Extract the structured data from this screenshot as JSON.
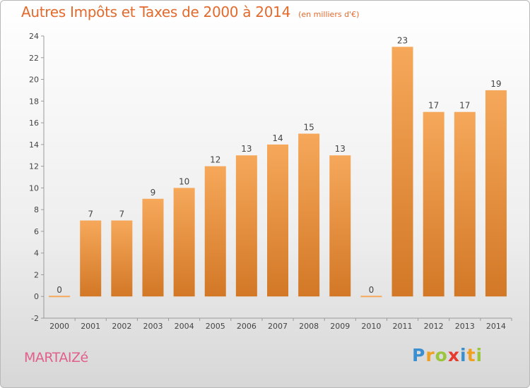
{
  "header": {
    "title": "Autres Impôts et Taxes de 2000 à 2014",
    "subtitle": "(en milliers d'€)"
  },
  "footer": {
    "commune": "MARTAIZé",
    "logo_letters": [
      "P",
      "r",
      "o",
      "x",
      "i",
      "t",
      "i"
    ],
    "logo_colors": [
      "#3a8fd0",
      "#f0a020",
      "#9bc53d",
      "#e8392f",
      "#3a8fd0",
      "#f0a020",
      "#9bc53d"
    ]
  },
  "colors": {
    "bar_light": "#f6a85a",
    "bar_dark": "#d27826",
    "title": "#e26a2c",
    "commune": "#e0608a"
  },
  "chart_data": {
    "type": "bar",
    "categories": [
      "2000",
      "2001",
      "2002",
      "2003",
      "2004",
      "2005",
      "2006",
      "2007",
      "2008",
      "2009",
      "2010",
      "2011",
      "2012",
      "2013",
      "2014"
    ],
    "values": [
      0,
      7,
      7,
      9,
      10,
      12,
      13,
      14,
      15,
      13,
      0,
      23,
      17,
      17,
      19
    ],
    "title": "Autres Impôts et Taxes de 2000 à 2014",
    "subtitle": "(en milliers d'€)",
    "ylim": [
      -2,
      24
    ],
    "yticks": [
      -2,
      0,
      2,
      4,
      6,
      8,
      10,
      12,
      14,
      16,
      18,
      20,
      22,
      24
    ],
    "grid": false
  }
}
